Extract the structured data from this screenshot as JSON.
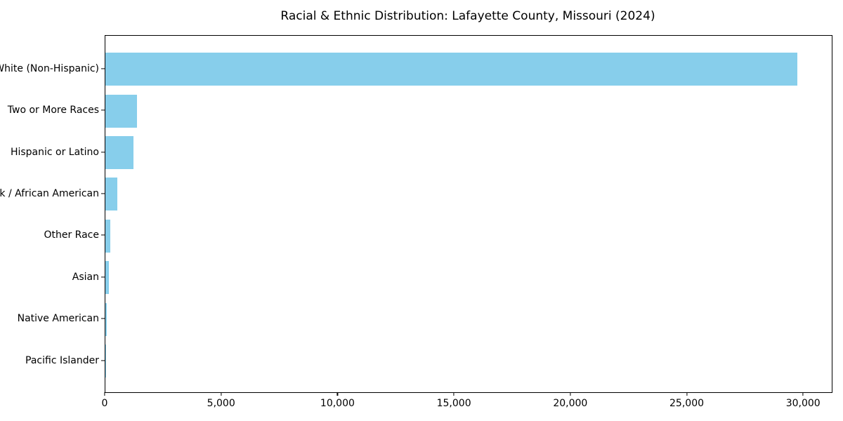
{
  "chart_data": {
    "type": "bar",
    "orientation": "horizontal",
    "title": "Racial & Ethnic Distribution: Lafayette County, Missouri (2024)",
    "categories": [
      "White (Non-Hispanic)",
      "Two or More Races",
      "Hispanic or Latino",
      "Black / African American",
      "Other Race",
      "Asian",
      "Native American",
      "Pacific Islander"
    ],
    "values": [
      29730,
      1350,
      1200,
      510,
      210,
      150,
      75,
      10
    ],
    "xlabel": "",
    "ylabel": "",
    "xlim": [
      0,
      31200
    ],
    "x_ticks": [
      0,
      5000,
      10000,
      15000,
      20000,
      25000,
      30000
    ],
    "x_tick_labels": [
      "0",
      "5,000",
      "10,000",
      "15,000",
      "20,000",
      "25,000",
      "30,000"
    ],
    "bar_color": "#87CEEB",
    "background_color": "#ffffff",
    "axis_color": "#000000",
    "grid": false,
    "legend": false
  }
}
